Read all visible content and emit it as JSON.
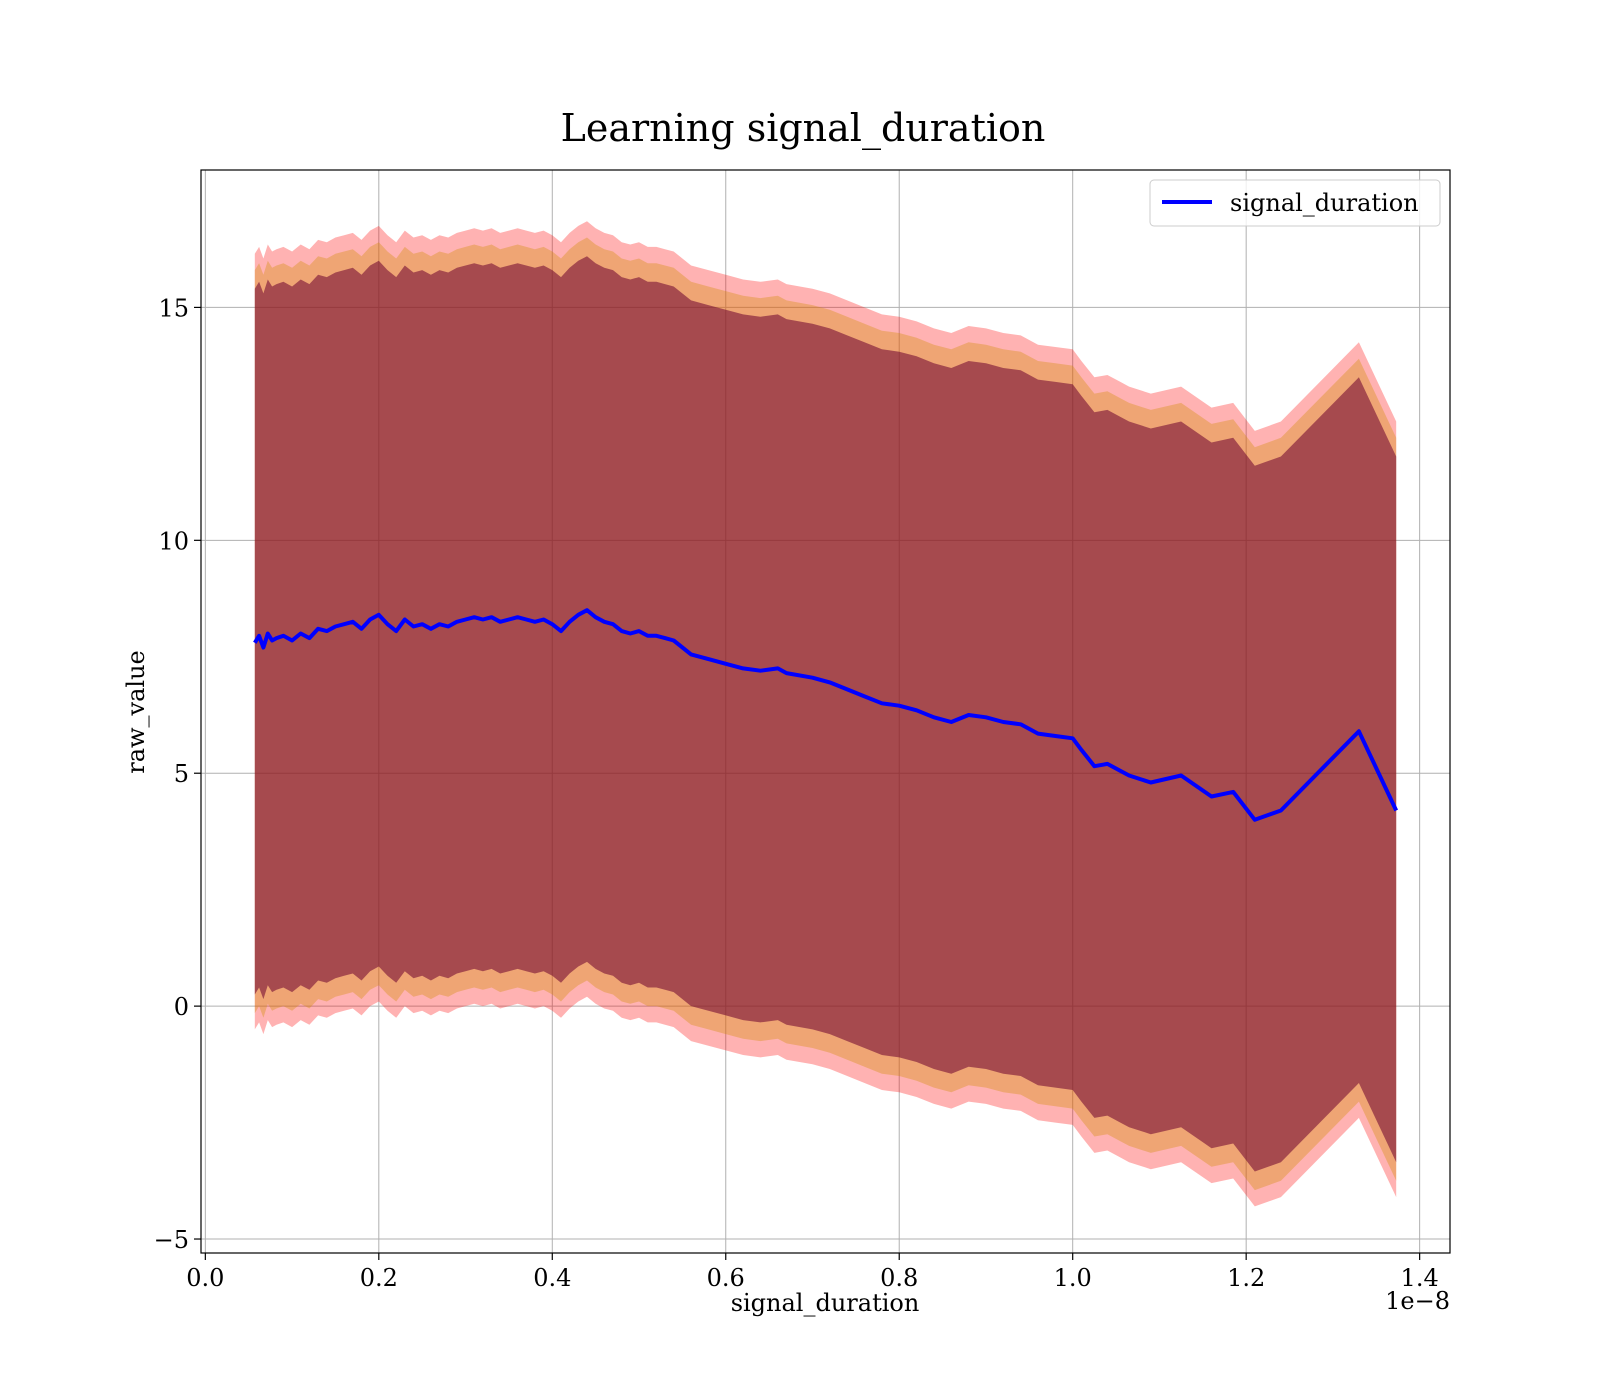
{
  "chart_data": {
    "type": "line",
    "title": "Learning signal_duration",
    "xlabel": "signal_duration",
    "ylabel": "raw_value",
    "x_offset_label": "1e−8",
    "xlim": [
      -0.005,
      1.435
    ],
    "ylim": [
      -5.3,
      17.95
    ],
    "xticks": [
      0.0,
      0.2,
      0.4,
      0.6,
      0.8,
      1.0,
      1.2,
      1.4
    ],
    "xtick_labels": [
      "0.0",
      "0.2",
      "0.4",
      "0.6",
      "0.8",
      "1.0",
      "1.2",
      "1.4"
    ],
    "yticks": [
      -5,
      0,
      5,
      10,
      15
    ],
    "ytick_labels": [
      "−5",
      "0",
      "5",
      "10",
      "15"
    ],
    "grid": true,
    "legend_position": "top-right",
    "series": [
      {
        "name": "signal_duration",
        "color": "#0000ff",
        "x": [
          0.057,
          0.062,
          0.067,
          0.072,
          0.077,
          0.082,
          0.09,
          0.1,
          0.11,
          0.12,
          0.13,
          0.14,
          0.15,
          0.16,
          0.17,
          0.18,
          0.19,
          0.2,
          0.21,
          0.22,
          0.23,
          0.24,
          0.25,
          0.26,
          0.27,
          0.28,
          0.29,
          0.3,
          0.31,
          0.32,
          0.33,
          0.34,
          0.35,
          0.36,
          0.37,
          0.38,
          0.39,
          0.4,
          0.41,
          0.42,
          0.43,
          0.44,
          0.45,
          0.46,
          0.47,
          0.48,
          0.49,
          0.5,
          0.51,
          0.52,
          0.53,
          0.54,
          0.56,
          0.58,
          0.6,
          0.62,
          0.64,
          0.66,
          0.67,
          0.7,
          0.72,
          0.74,
          0.76,
          0.78,
          0.8,
          0.82,
          0.84,
          0.86,
          0.88,
          0.9,
          0.92,
          0.94,
          0.96,
          0.98,
          1.0,
          1.01,
          1.025,
          1.04,
          1.055,
          1.065,
          1.09,
          1.125,
          1.16,
          1.185,
          1.21,
          1.24,
          1.33,
          1.373
        ],
        "values": [
          7.8,
          7.95,
          7.7,
          8.0,
          7.85,
          7.9,
          7.95,
          7.85,
          8.0,
          7.9,
          8.1,
          8.05,
          8.15,
          8.2,
          8.25,
          8.1,
          8.3,
          8.4,
          8.2,
          8.05,
          8.3,
          8.15,
          8.2,
          8.1,
          8.2,
          8.15,
          8.25,
          8.3,
          8.35,
          8.3,
          8.35,
          8.25,
          8.3,
          8.35,
          8.3,
          8.25,
          8.3,
          8.2,
          8.05,
          8.25,
          8.4,
          8.5,
          8.35,
          8.25,
          8.2,
          8.05,
          8.0,
          8.05,
          7.95,
          7.95,
          7.9,
          7.85,
          7.55,
          7.45,
          7.35,
          7.25,
          7.2,
          7.25,
          7.15,
          7.05,
          6.95,
          6.8,
          6.65,
          6.5,
          6.45,
          6.35,
          6.2,
          6.1,
          6.25,
          6.2,
          6.1,
          6.05,
          5.85,
          5.8,
          5.75,
          5.5,
          5.15,
          5.2,
          5.05,
          4.95,
          4.8,
          4.95,
          4.5,
          4.6,
          4.0,
          4.2,
          5.9,
          4.2
        ]
      }
    ],
    "bands": [
      {
        "color": "#ff0000",
        "opacity": 0.3,
        "upper_offset": 8.35,
        "lower_offset": -8.3
      },
      {
        "color": "#d28c00",
        "opacity": 0.35,
        "upper_offset": 8.0,
        "lower_offset": -7.95
      },
      {
        "color": "#6a0030",
        "opacity": 0.55,
        "upper_offset": 7.6,
        "lower_offset": -7.55
      }
    ]
  }
}
